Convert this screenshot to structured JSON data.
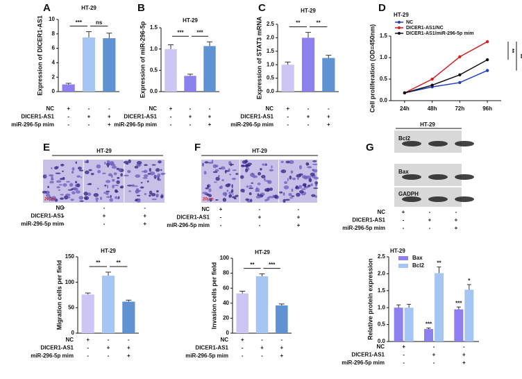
{
  "chart_data": [
    {
      "panel": "A",
      "type": "bar",
      "title": "HT-29",
      "y_label": "Expression of DICER1-AS1",
      "values": [
        1.0,
        7.5,
        7.4
      ],
      "errors": [
        0.15,
        0.8,
        0.7
      ],
      "colors": [
        "#8b80ee",
        "#a5c6f5",
        "#5f92d2"
      ],
      "ylim": [
        0,
        10
      ],
      "yticks": [
        0,
        2,
        4,
        6,
        8,
        10
      ],
      "significance": [
        {
          "text": "***",
          "bars": [
            0,
            1
          ]
        },
        {
          "text": "ns",
          "bars": [
            1,
            2
          ]
        }
      ],
      "conditions": [
        {
          "name": "NC",
          "signs": [
            "+",
            "-",
            "-"
          ]
        },
        {
          "name": "DICER1-AS1",
          "signs": [
            "-",
            "+",
            "+"
          ]
        },
        {
          "name": "miR-296-5p mim",
          "signs": [
            "-",
            "-",
            "+"
          ]
        }
      ]
    },
    {
      "panel": "B",
      "type": "bar",
      "title": "HT-29",
      "y_label": "Expression of miR-296-5p",
      "values": [
        1.0,
        0.37,
        1.07
      ],
      "errors": [
        0.1,
        0.04,
        0.1
      ],
      "colors": [
        "#ccc6f5",
        "#8b80ee",
        "#5f92d2"
      ],
      "ylim": [
        0,
        1.5
      ],
      "yticks": [
        {
          "value": 0,
          "label": "0.0"
        },
        0.5,
        {
          "value": 1,
          "label": "1.0"
        },
        1.5
      ],
      "significance": [
        {
          "text": "***",
          "bars": [
            0,
            1
          ]
        },
        {
          "text": "***",
          "bars": [
            1,
            2
          ]
        }
      ],
      "conditions": [
        {
          "name": "NC",
          "signs": [
            "+",
            "-",
            "-"
          ]
        },
        {
          "name": "DICER1-AS1",
          "signs": [
            "-",
            "+",
            "+"
          ]
        },
        {
          "name": "miR-296-5p mim",
          "signs": [
            "-",
            "-",
            "+"
          ]
        }
      ]
    },
    {
      "panel": "C",
      "type": "bar",
      "title": "HT-29",
      "y_label": "Expression of STAT3 mRNA",
      "values": [
        1.0,
        2.0,
        1.25
      ],
      "errors": [
        0.1,
        0.2,
        0.1
      ],
      "colors": [
        "#ccc6f5",
        "#8b80ee",
        "#5f92d2"
      ],
      "ylim": [
        0,
        2.5
      ],
      "yticks": [
        {
          "value": 0,
          "label": "0.0"
        },
        0.5,
        {
          "value": 1,
          "label": "1.0"
        },
        1.5,
        {
          "value": 2,
          "label": "2.0"
        },
        2.5
      ],
      "significance": [
        {
          "text": "**",
          "bars": [
            0,
            1
          ]
        },
        {
          "text": "**",
          "bars": [
            1,
            2
          ]
        }
      ],
      "conditions": [
        {
          "name": "NC",
          "signs": [
            "+",
            "-",
            "-"
          ]
        },
        {
          "name": "DICER1-AS1",
          "signs": [
            "-",
            "+",
            "+"
          ]
        },
        {
          "name": "miR-296-5p mim",
          "signs": [
            "-",
            "-",
            "+"
          ]
        }
      ]
    },
    {
      "panel": "D",
      "type": "line",
      "title": "HT-29",
      "y_label": "Cell proliferation (OD=450nm)",
      "categories": [
        "24h",
        "48h",
        "72h",
        "96h"
      ],
      "series": [
        {
          "name": "NC",
          "color": "#1f3fbf",
          "values": [
            0.18,
            0.32,
            0.42,
            0.7
          ]
        },
        {
          "name": "DICER1-AS1/NC",
          "color": "#d62020",
          "values": [
            0.18,
            0.5,
            1.02,
            1.37
          ]
        },
        {
          "name": "DICER1-AS1/miR-296-5p mim",
          "color": "#111111",
          "values": [
            0.18,
            0.36,
            0.6,
            0.95
          ]
        }
      ],
      "ylim": [
        0,
        1.5
      ],
      "yticks": [
        {
          "value": 0,
          "label": "0.0"
        },
        0.5,
        {
          "value": 1,
          "label": "1.0"
        },
        1.5
      ],
      "significance": [
        {
          "text": "**",
          "series": [
            1,
            2
          ]
        },
        {
          "text": "**",
          "series": [
            0,
            1
          ]
        }
      ]
    },
    {
      "panel": "E",
      "type": "micrograph",
      "title": "HT-29",
      "scale_label": "20μm",
      "conditions": [
        {
          "name": "NC",
          "signs": [
            "+",
            "-",
            "-"
          ]
        },
        {
          "name": "DICER1-AS1",
          "signs": [
            "-",
            "+",
            "+"
          ]
        },
        {
          "name": "miR-296-5p mim",
          "signs": [
            "-",
            "-",
            "+"
          ]
        }
      ]
    },
    {
      "panel": "F",
      "type": "micrograph",
      "title": "HT-29",
      "scale_label": "20μm",
      "conditions": [
        {
          "name": "NC",
          "signs": [
            "+",
            "-",
            "-"
          ]
        },
        {
          "name": "DICER1-AS1",
          "signs": [
            "-",
            "+",
            "+"
          ]
        },
        {
          "name": "miR-296-5p mim",
          "signs": [
            "-",
            "-",
            "+"
          ]
        }
      ]
    },
    {
      "panel": "G",
      "type": "blot",
      "title": "HT-29",
      "bands": [
        "Bcl2",
        "Bax",
        "GADPH"
      ],
      "conditions": [
        {
          "name": "NC",
          "signs": [
            "+",
            "-",
            "-"
          ]
        },
        {
          "name": "DICER1-AS1",
          "signs": [
            "-",
            "+",
            "+"
          ]
        },
        {
          "name": "miR-296-5p mim",
          "signs": [
            "-",
            "-",
            "+"
          ]
        }
      ]
    },
    {
      "type": "bar",
      "title": "HT-29",
      "y_label": "Migration cells per field",
      "values": [
        76,
        113,
        62
      ],
      "errors": [
        3,
        7,
        3
      ],
      "colors": [
        "#ccc6f5",
        "#a5c6f5",
        "#5f92d2"
      ],
      "ylim": [
        0,
        150
      ],
      "yticks": [
        0,
        50,
        100,
        150
      ],
      "significance": [
        {
          "text": "**",
          "bars": [
            0,
            1
          ]
        },
        {
          "text": "**",
          "bars": [
            1,
            2
          ]
        }
      ],
      "conditions": [
        {
          "name": "NC",
          "signs": [
            "+",
            "-",
            "-"
          ]
        },
        {
          "name": "DICER1-AS1",
          "signs": [
            "-",
            "+",
            "+"
          ]
        },
        {
          "name": "miR-296-5p mim",
          "signs": [
            "-",
            "-",
            "+"
          ]
        }
      ]
    },
    {
      "type": "bar",
      "title": "HT-29",
      "y_label": "Invasion cells per field",
      "values": [
        53,
        76,
        37
      ],
      "errors": [
        3,
        3,
        2
      ],
      "colors": [
        "#ccc6f5",
        "#a5c6f5",
        "#5f92d2"
      ],
      "ylim": [
        0,
        100
      ],
      "yticks": [
        0,
        20,
        40,
        60,
        80,
        100
      ],
      "significance": [
        {
          "text": "**",
          "bars": [
            0,
            1
          ]
        },
        {
          "text": "***",
          "bars": [
            1,
            2
          ]
        }
      ],
      "conditions": [
        {
          "name": "NC",
          "signs": [
            "+",
            "-",
            "-"
          ]
        },
        {
          "name": "DICER1-AS1",
          "signs": [
            "-",
            "+",
            "+"
          ]
        },
        {
          "name": "miR-296-5p mim",
          "signs": [
            "-",
            "-",
            "+"
          ]
        }
      ]
    },
    {
      "type": "grouped_bar",
      "title": "HT-29",
      "y_label": "Relative protein expression",
      "series": [
        {
          "name": "Bax",
          "color": "#8b80ee",
          "values": [
            1.0,
            0.37,
            0.95
          ],
          "errors": [
            0.08,
            0.03,
            0.07
          ],
          "stars": [
            null,
            "***",
            "***"
          ]
        },
        {
          "name": "Bcl2",
          "color": "#a5c6f5",
          "values": [
            1.0,
            2.02,
            1.53
          ],
          "errors": [
            0.1,
            0.18,
            0.15
          ],
          "stars": [
            null,
            "**",
            "*"
          ]
        }
      ],
      "ylim": [
        0,
        2.5
      ],
      "yticks": [
        {
          "value": 0,
          "label": "0.0"
        },
        0.5,
        {
          "value": 1,
          "label": "1.0"
        },
        1.5,
        {
          "value": 2,
          "label": "2.0"
        },
        2.5
      ],
      "conditions": [
        {
          "name": "NC",
          "signs": [
            "+",
            "-",
            "-"
          ]
        },
        {
          "name": "DICER1-AS1",
          "signs": [
            "-",
            "+",
            "+"
          ]
        },
        {
          "name": "miR-296-5p mim",
          "signs": [
            "-",
            "-",
            "+"
          ]
        }
      ]
    }
  ]
}
